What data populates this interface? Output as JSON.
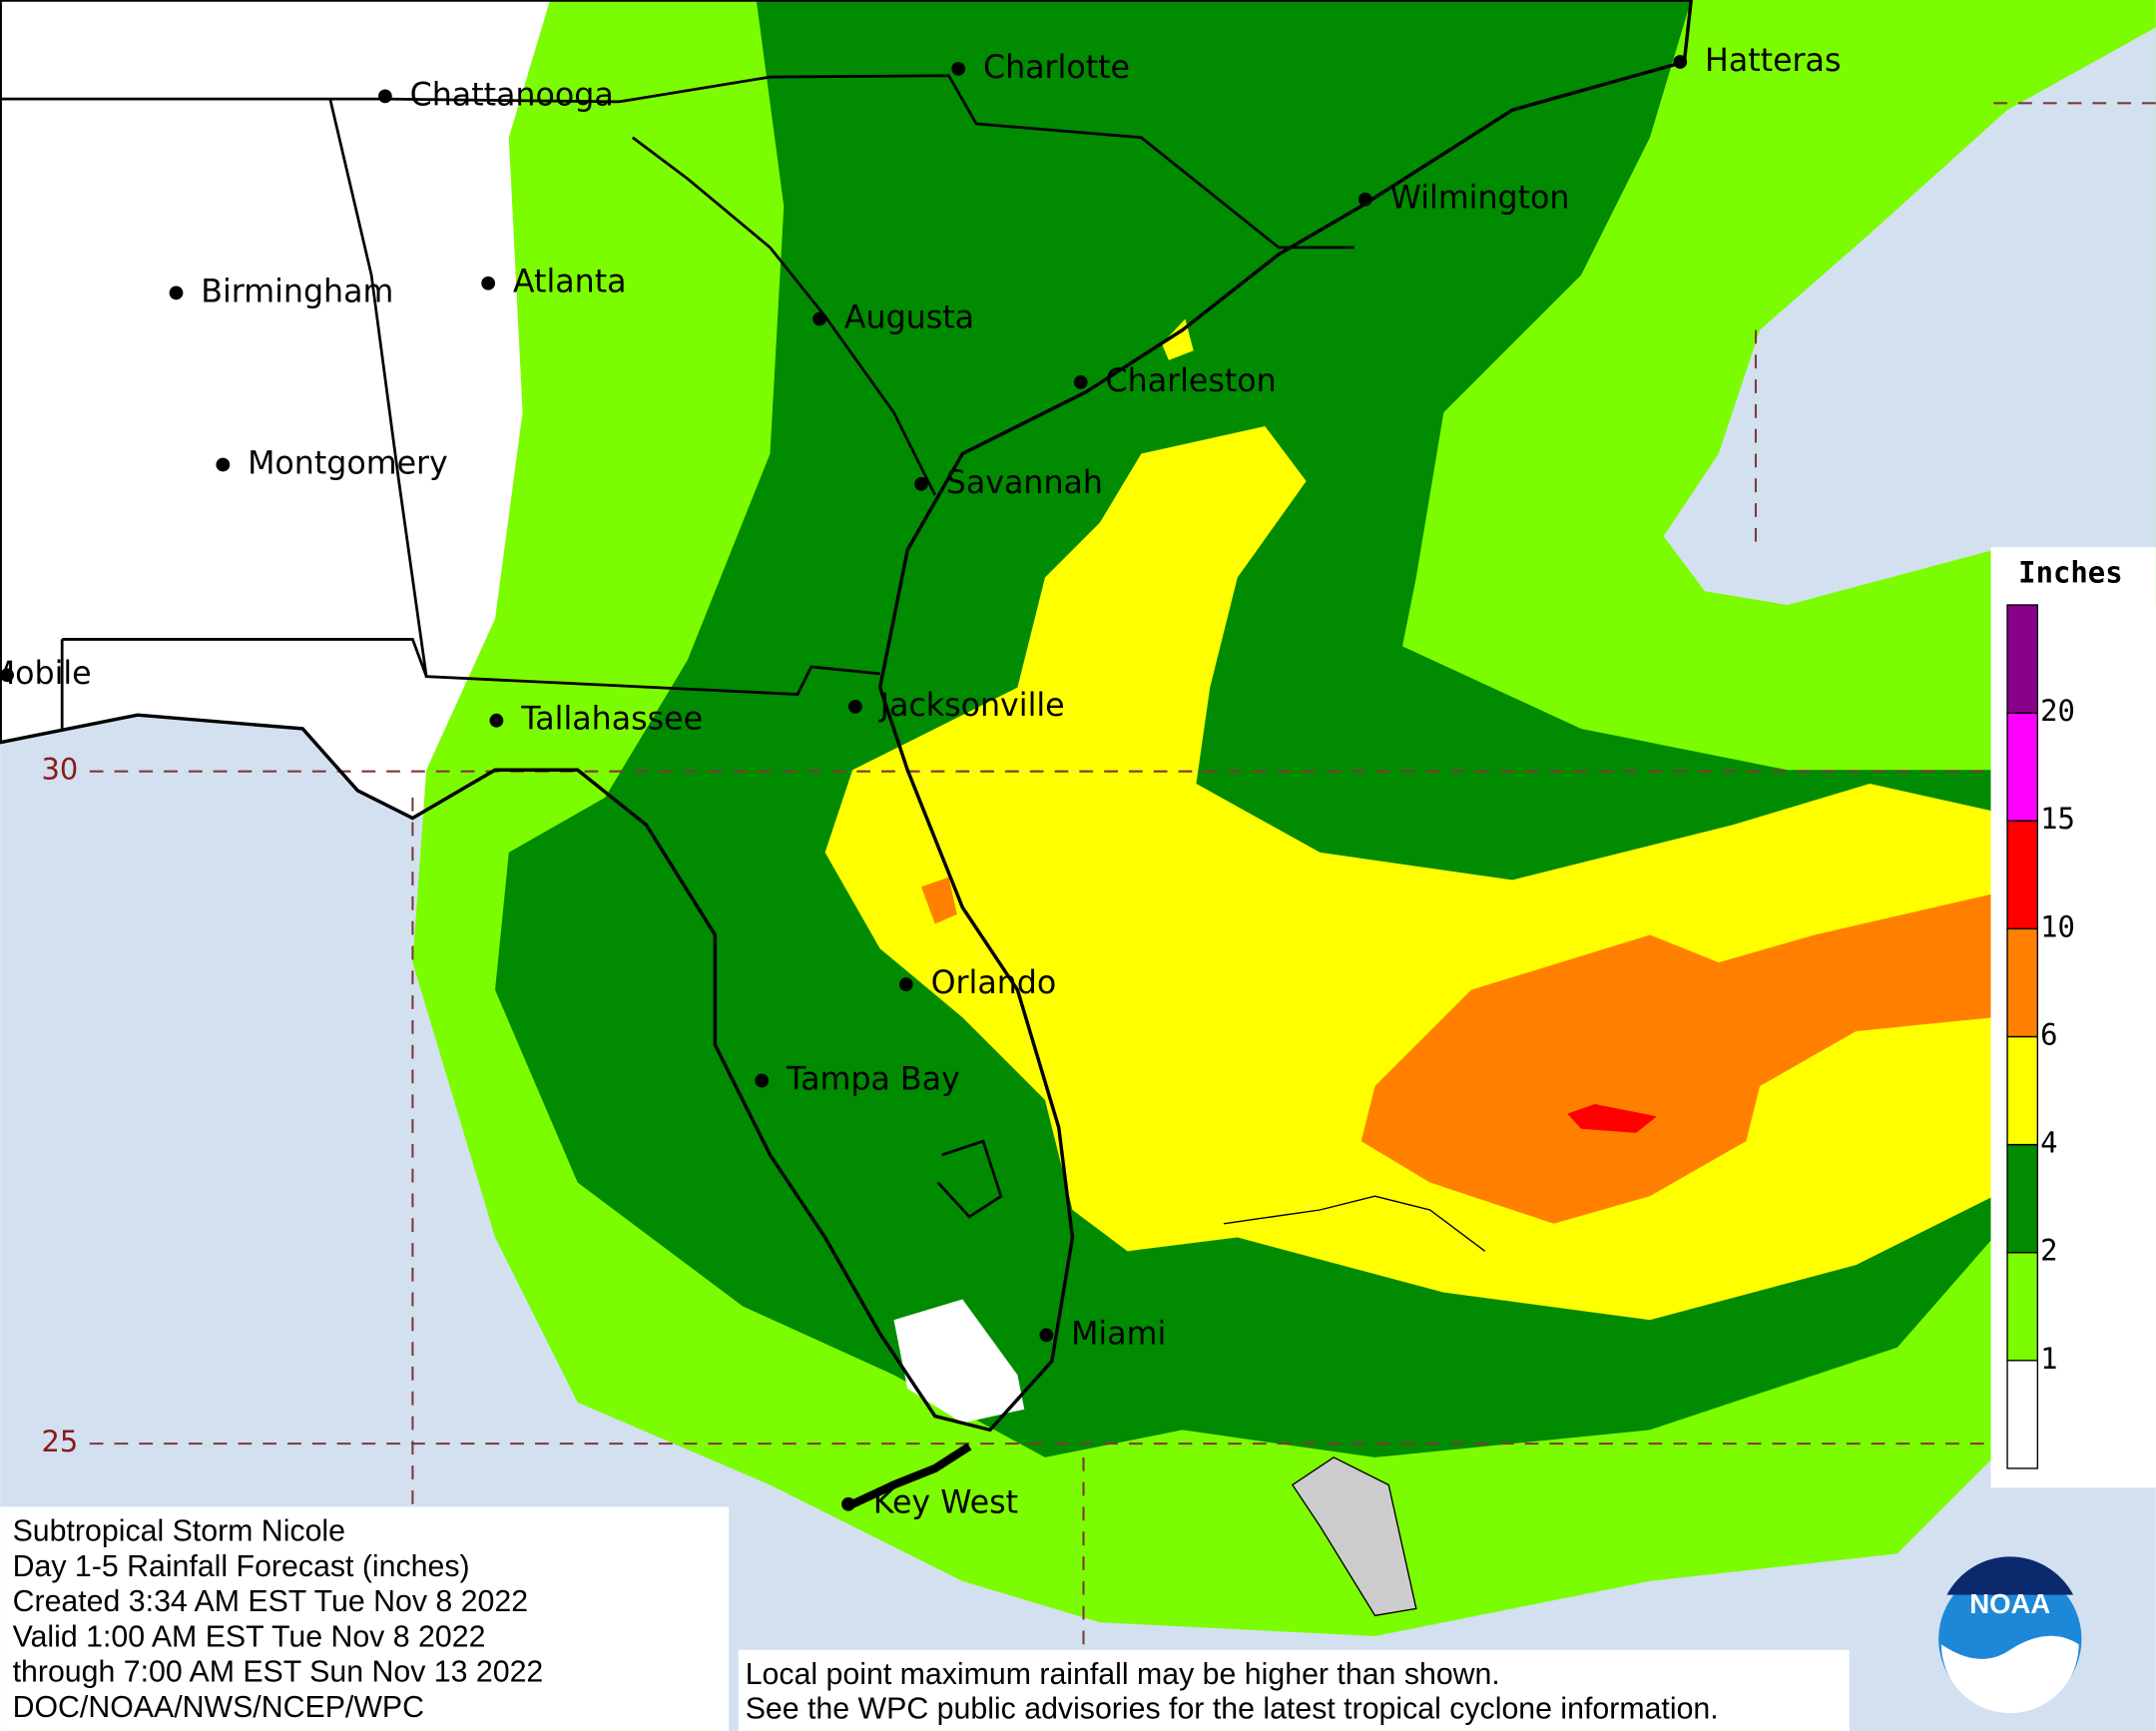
{
  "cities": [
    "Charlotte",
    "Hatteras",
    "Chattanooga",
    "Wilmington",
    "Birmingham",
    "Atlanta",
    "Augusta",
    "Charleston",
    "Montgomery",
    "Savannah",
    "Mobile",
    "Tallahassee",
    "Jacksonville",
    "Orlando",
    "Tampa Bay",
    "Miami",
    "Key West"
  ],
  "latitude_labels": [
    30,
    25
  ],
  "legend": {
    "title": "Inches",
    "thresholds": [
      1,
      2,
      4,
      6,
      10,
      15,
      20
    ],
    "colors": [
      "#ffffff",
      "#7cfc00",
      "#008b00",
      "#ffff00",
      "#ff8000",
      "#ff0000",
      "#ff00ff",
      "#8b008b"
    ]
  },
  "info_box": {
    "lines": [
      "Subtropical Storm Nicole",
      "Day 1-5 Rainfall Forecast (inches)",
      "Created 3:34 AM EST Tue Nov 8 2022",
      "Valid 1:00 AM EST Tue Nov 8 2022",
      "through 7:00 AM EST Sun Nov 13 2022",
      "DOC/NOAA/NWS/NCEP/WPC"
    ]
  },
  "disclaimer": {
    "lines": [
      "Local point maximum rainfall may be higher than shown.",
      "See the WPC public advisories for the latest tropical cyclone information."
    ]
  },
  "logo": "NOAA"
}
